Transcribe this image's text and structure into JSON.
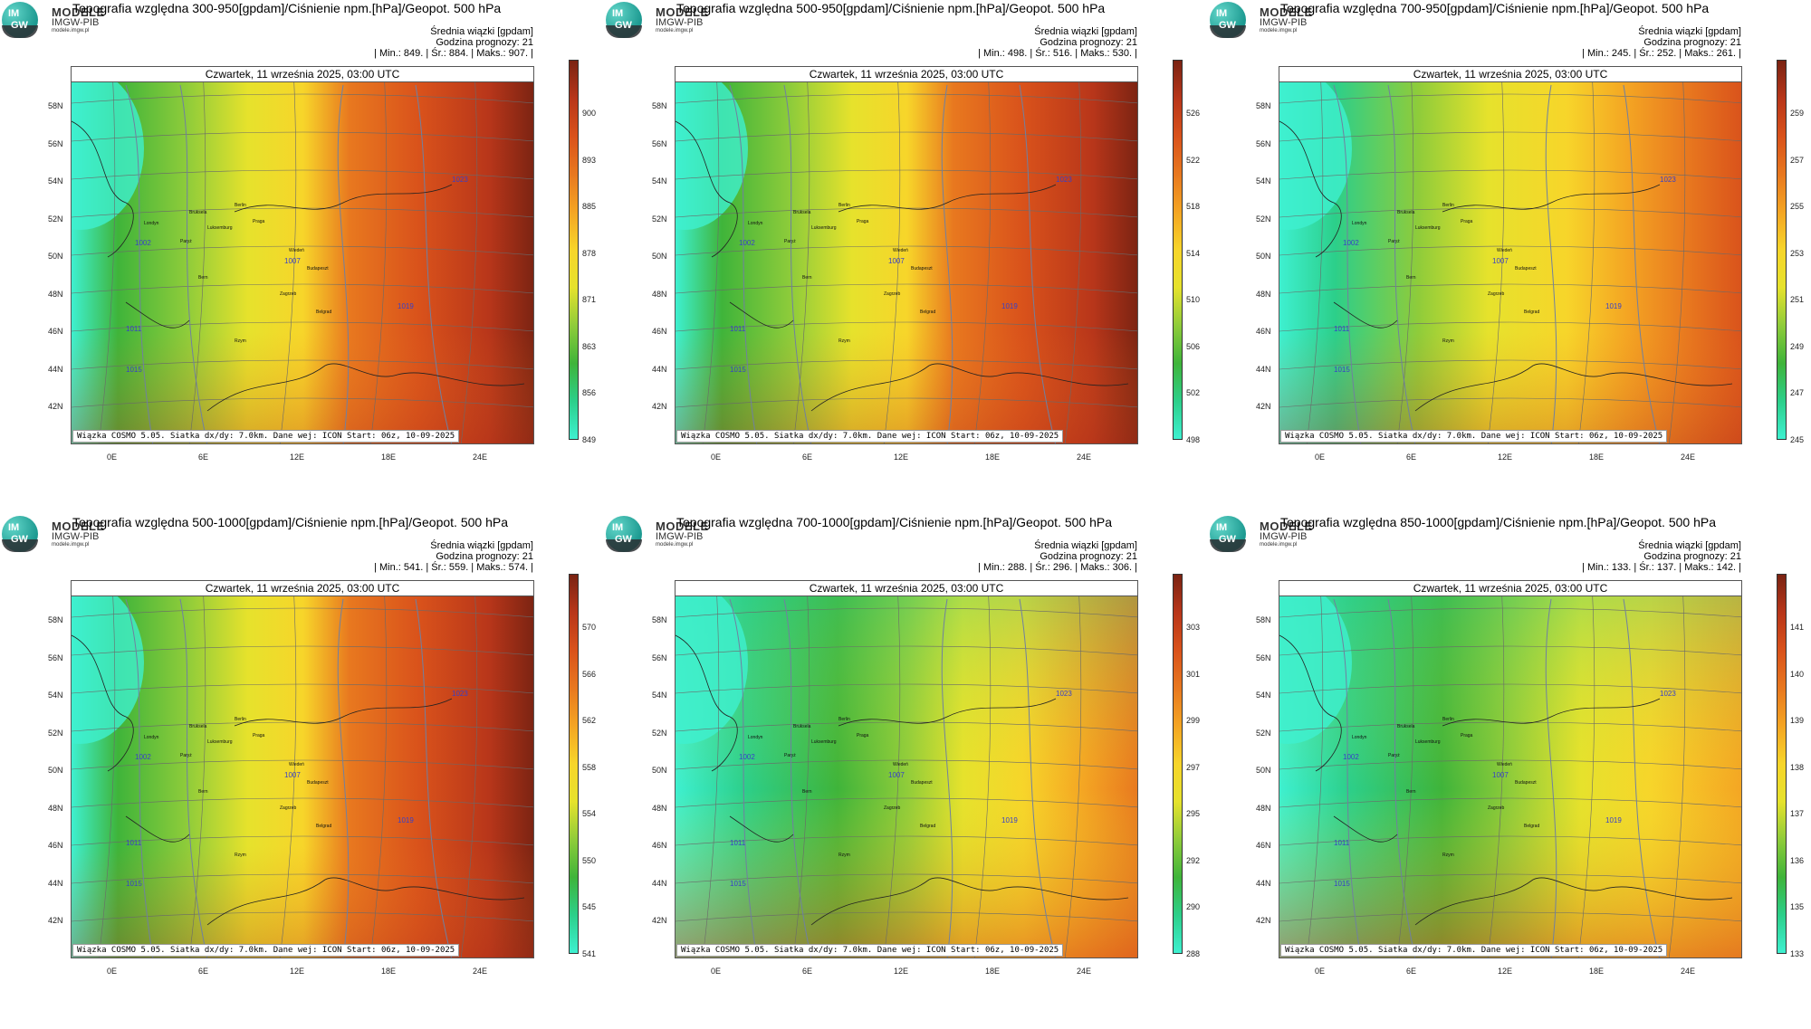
{
  "date_label": "Czwartek, 11 września 2025, 03:00 UTC",
  "meta_line1": "Średnia wiązki [gpdam]",
  "meta_line2": "Godzina prognozy: 21",
  "footer": "Wiązka COSMO 5.05. Siatka dx/dy: 7.0km. Dane wej: ICON Start: 06z, 10-09-2025",
  "logo": {
    "modele": "MODELE",
    "imgw": "IMGW-PIB",
    "site": "modele.imgw.pl",
    "im": "IM",
    "gw": "GW"
  },
  "lat_labels": [
    "58N",
    "56N",
    "54N",
    "52N",
    "50N",
    "48N",
    "46N",
    "44N",
    "42N"
  ],
  "lon_labels": [
    "0E",
    "6E",
    "12E",
    "18E",
    "24E"
  ],
  "cities": [
    "Londyn",
    "Bruksela",
    "Paryż",
    "Luksemburg",
    "Berlin",
    "Praga",
    "Wiedeń",
    "Budapeszt",
    "Zagrzeb",
    "Belgrad",
    "Rzym",
    "Bern"
  ],
  "isobar_labels": [
    "1007",
    "1011",
    "1015",
    "1002",
    "1019",
    "1023"
  ],
  "colors": {
    "field": [
      "#3ef0d0",
      "#2ccf8a",
      "#3fb43a",
      "#8fcc3a",
      "#e6e22c",
      "#f7d52a",
      "#f4a523",
      "#e8781f",
      "#d9521b",
      "#b8361a",
      "#7a2312"
    ]
  },
  "panels": [
    {
      "title": "Topografia względna 300-950[gpdam]/Ciśnienie npm.[hPa]/Geopot. 500 hPa",
      "stats": "| Min.:    849. | Śr.:    884. | Maks.:    907. |",
      "ticks": [
        "900",
        "893",
        "885",
        "878",
        "871",
        "863",
        "856",
        "849"
      ],
      "pattern": "warmeast"
    },
    {
      "title": "Topografia względna 500-950[gpdam]/Ciśnienie npm.[hPa]/Geopot. 500 hPa",
      "stats": "| Min.:    498. | Śr.:    516. | Maks.:    530. |",
      "ticks": [
        "526",
        "522",
        "518",
        "514",
        "510",
        "506",
        "502",
        "498"
      ],
      "pattern": "warmeast"
    },
    {
      "title": "Topografia względna 700-950[gpdam]/Ciśnienie npm.[hPa]/Geopot. 500 hPa",
      "stats": "| Min.:    245. | Śr.:    252. | Maks.:    261. |",
      "ticks": [
        "259",
        "257",
        "255",
        "253",
        "251",
        "249",
        "247",
        "245"
      ],
      "pattern": "yelloweast"
    },
    {
      "title": "Topografia względna 500-1000[gpdam]/Ciśnienie npm.[hPa]/Geopot. 500 hPa",
      "stats": "| Min.:    541. | Śr.:    559. | Maks.:    574. |",
      "ticks": [
        "570",
        "566",
        "562",
        "558",
        "554",
        "550",
        "545",
        "541"
      ],
      "pattern": "warmeast"
    },
    {
      "title": "Topografia względna 700-1000[gpdam]/Ciśnienie npm.[hPa]/Geopot. 500 hPa",
      "stats": "| Min.:    288. | Śr.:    296. | Maks.:    306. |",
      "ticks": [
        "303",
        "301",
        "299",
        "297",
        "295",
        "292",
        "290",
        "288"
      ],
      "pattern": "greennorth"
    },
    {
      "title": "Topografia względna 850-1000[gpdam]/Ciśnienie npm.[hPa]/Geopot. 500 hPa",
      "stats": "| Min.:    133. | Śr.:    137. | Maks.:    142. |",
      "ticks": [
        "141",
        "140",
        "139",
        "138",
        "137",
        "136",
        "135",
        "133"
      ],
      "pattern": "greenall"
    }
  ]
}
